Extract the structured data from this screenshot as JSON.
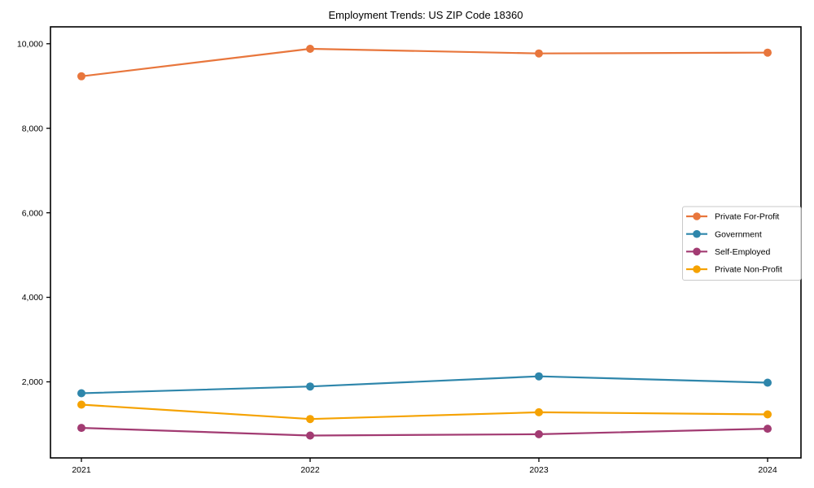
{
  "chart_data": {
    "type": "line",
    "title": "Employment Trends: US ZIP Code 18360",
    "xlabel": "",
    "ylabel": "",
    "categories": [
      "2021",
      "2022",
      "2023",
      "2024"
    ],
    "series": [
      {
        "name": "Private For-Profit",
        "color": "#E8763C",
        "values": [
          9230,
          9880,
          9770,
          9790
        ]
      },
      {
        "name": "Government",
        "color": "#2E86AB",
        "values": [
          1730,
          1890,
          2130,
          1980
        ]
      },
      {
        "name": "Self-Employed",
        "color": "#A23B72",
        "values": [
          910,
          730,
          760,
          890
        ]
      },
      {
        "name": "Private Non-Profit",
        "color": "#F5A201",
        "values": [
          1460,
          1120,
          1280,
          1230
        ]
      }
    ],
    "yticks": [
      2000,
      4000,
      6000,
      8000,
      10000
    ],
    "ytick_labels": [
      "2,000",
      "4,000",
      "6,000",
      "8,000",
      "10,000"
    ],
    "ylim": [
      200,
      10400
    ],
    "grid": false,
    "marker": "circle",
    "legend_position": "center right",
    "frame_color": "#000000",
    "legend_border_color": "#c9c9c9",
    "background_color": "#ffffff"
  }
}
